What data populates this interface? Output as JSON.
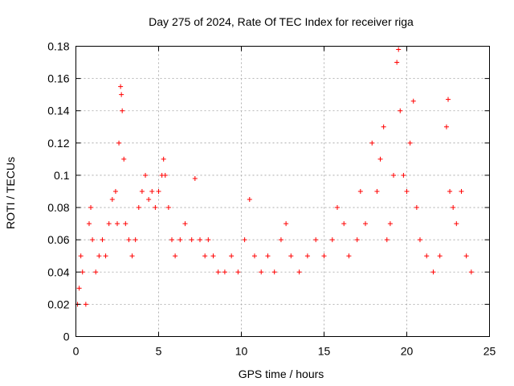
{
  "chart_data": {
    "type": "scatter",
    "title": "Day 275 of 2024, Rate Of TEC Index for receiver riga",
    "xlabel": "GPS time / hours",
    "ylabel": "ROTI / TECUs",
    "xlim": [
      0,
      25
    ],
    "ylim": [
      0,
      0.18
    ],
    "x_ticks": [
      "0",
      "5",
      "10",
      "15",
      "20",
      "25"
    ],
    "y_ticks": [
      "0",
      "0.02",
      "0.04",
      "0.06",
      "0.08",
      "0.1",
      "0.12",
      "0.14",
      "0.16",
      "0.18"
    ],
    "grid": true,
    "marker": "+",
    "color": "#ff0000",
    "points": [
      [
        0.1,
        0.02
      ],
      [
        0.2,
        0.03
      ],
      [
        0.3,
        0.05
      ],
      [
        0.4,
        0.04
      ],
      [
        0.6,
        0.02
      ],
      [
        0.8,
        0.07
      ],
      [
        0.9,
        0.08
      ],
      [
        1.0,
        0.06
      ],
      [
        1.2,
        0.04
      ],
      [
        1.4,
        0.05
      ],
      [
        1.6,
        0.06
      ],
      [
        1.8,
        0.05
      ],
      [
        2.0,
        0.07
      ],
      [
        2.2,
        0.085
      ],
      [
        2.4,
        0.09
      ],
      [
        2.5,
        0.07
      ],
      [
        2.6,
        0.12
      ],
      [
        2.7,
        0.155
      ],
      [
        2.75,
        0.15
      ],
      [
        2.8,
        0.14
      ],
      [
        2.9,
        0.11
      ],
      [
        3.0,
        0.07
      ],
      [
        3.2,
        0.06
      ],
      [
        3.4,
        0.05
      ],
      [
        3.6,
        0.06
      ],
      [
        3.8,
        0.08
      ],
      [
        4.0,
        0.09
      ],
      [
        4.2,
        0.1
      ],
      [
        4.4,
        0.085
      ],
      [
        4.6,
        0.09
      ],
      [
        4.8,
        0.08
      ],
      [
        5.0,
        0.09
      ],
      [
        5.2,
        0.1
      ],
      [
        5.3,
        0.11
      ],
      [
        5.4,
        0.1
      ],
      [
        5.6,
        0.08
      ],
      [
        5.8,
        0.06
      ],
      [
        6.0,
        0.05
      ],
      [
        6.3,
        0.06
      ],
      [
        6.6,
        0.07
      ],
      [
        7.0,
        0.06
      ],
      [
        7.2,
        0.098
      ],
      [
        7.5,
        0.06
      ],
      [
        7.8,
        0.05
      ],
      [
        8.0,
        0.06
      ],
      [
        8.3,
        0.05
      ],
      [
        8.6,
        0.04
      ],
      [
        9.0,
        0.04
      ],
      [
        9.4,
        0.05
      ],
      [
        9.8,
        0.04
      ],
      [
        10.2,
        0.06
      ],
      [
        10.5,
        0.085
      ],
      [
        10.8,
        0.05
      ],
      [
        11.2,
        0.04
      ],
      [
        11.6,
        0.05
      ],
      [
        12.0,
        0.04
      ],
      [
        12.4,
        0.06
      ],
      [
        12.7,
        0.07
      ],
      [
        13.0,
        0.05
      ],
      [
        13.5,
        0.04
      ],
      [
        14.0,
        0.05
      ],
      [
        14.5,
        0.06
      ],
      [
        15.0,
        0.05
      ],
      [
        15.5,
        0.06
      ],
      [
        15.8,
        0.08
      ],
      [
        16.2,
        0.07
      ],
      [
        16.5,
        0.05
      ],
      [
        17.0,
        0.06
      ],
      [
        17.2,
        0.09
      ],
      [
        17.5,
        0.07
      ],
      [
        17.9,
        0.12
      ],
      [
        18.2,
        0.09
      ],
      [
        18.4,
        0.11
      ],
      [
        18.6,
        0.13
      ],
      [
        18.8,
        0.06
      ],
      [
        19.0,
        0.07
      ],
      [
        19.2,
        0.1
      ],
      [
        19.4,
        0.17
      ],
      [
        19.5,
        0.178
      ],
      [
        19.6,
        0.14
      ],
      [
        19.8,
        0.1
      ],
      [
        20.0,
        0.09
      ],
      [
        20.2,
        0.12
      ],
      [
        20.4,
        0.146
      ],
      [
        20.6,
        0.08
      ],
      [
        20.8,
        0.06
      ],
      [
        21.2,
        0.05
      ],
      [
        21.6,
        0.04
      ],
      [
        22.0,
        0.05
      ],
      [
        22.4,
        0.13
      ],
      [
        22.5,
        0.147
      ],
      [
        22.6,
        0.09
      ],
      [
        22.8,
        0.08
      ],
      [
        23.0,
        0.07
      ],
      [
        23.3,
        0.09
      ],
      [
        23.6,
        0.05
      ],
      [
        23.9,
        0.04
      ]
    ]
  }
}
